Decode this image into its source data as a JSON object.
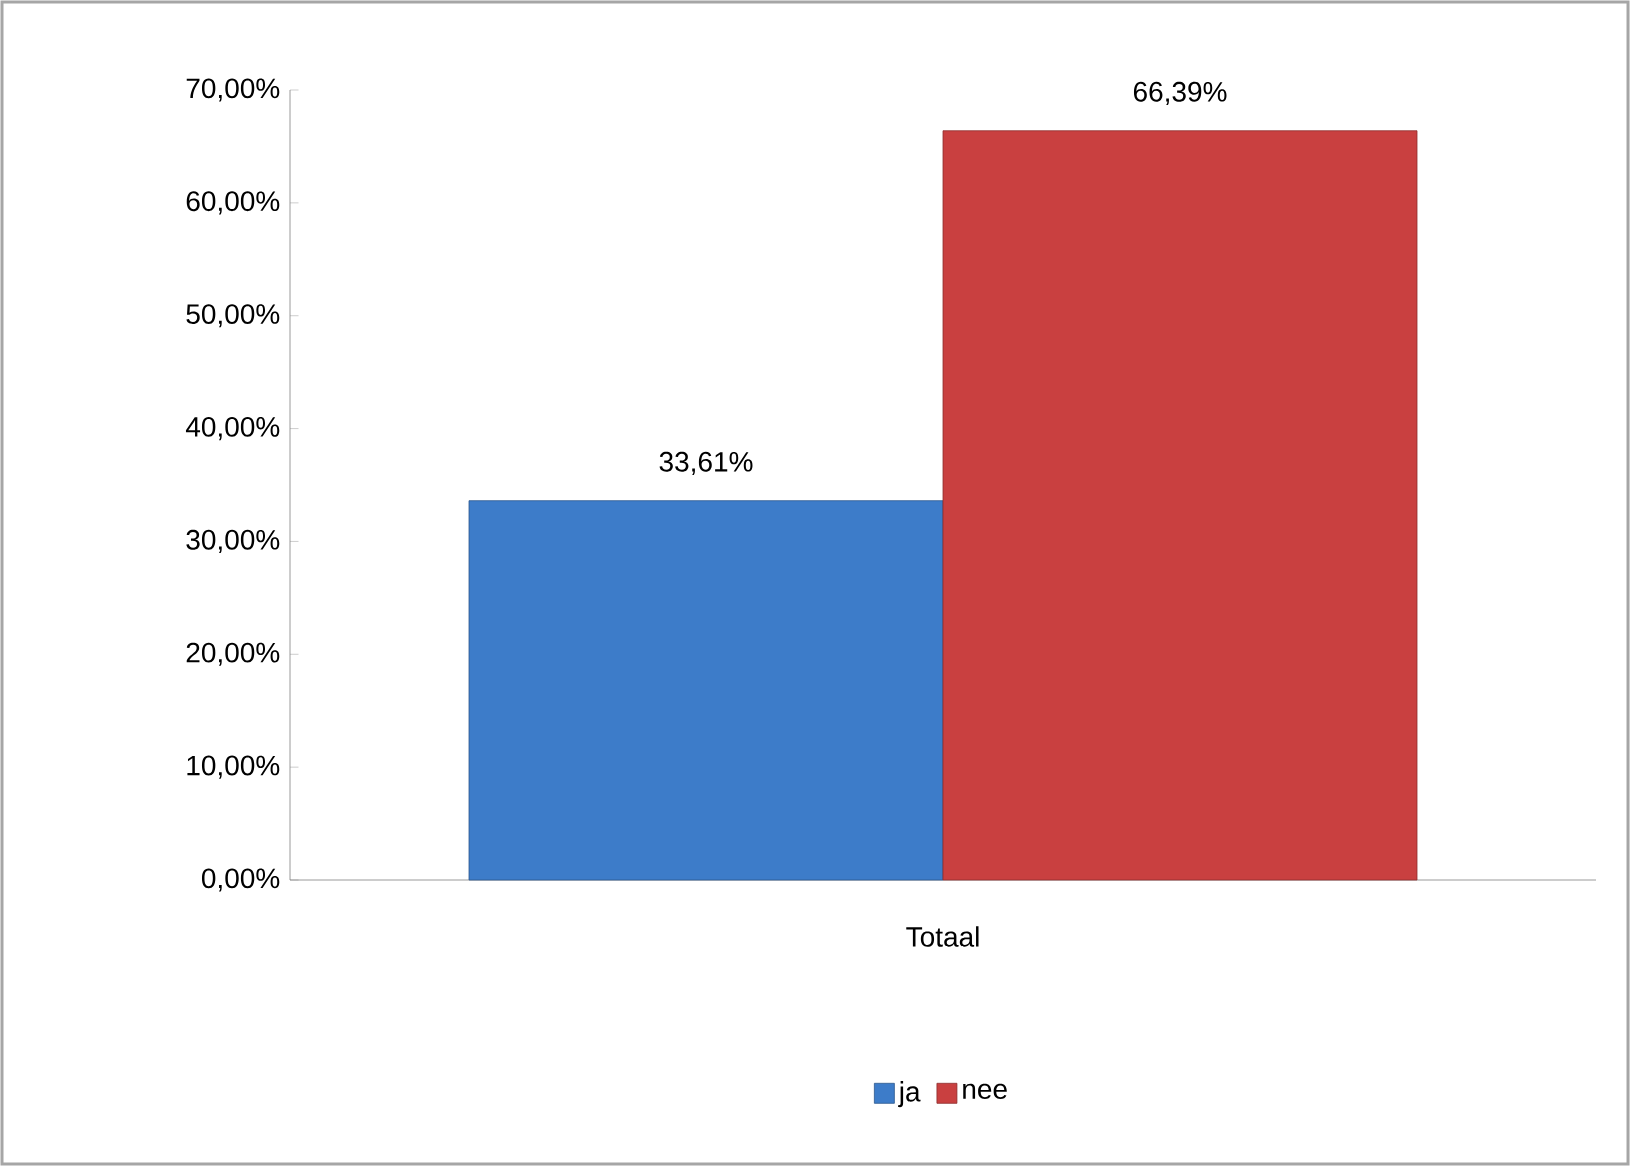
{
  "chart_data": {
    "type": "bar",
    "categories": [
      "Totaal"
    ],
    "series": [
      {
        "name": "ja",
        "color": "#3d7cc9",
        "values": [
          33.61
        ],
        "value_labels": [
          "33,61%"
        ]
      },
      {
        "name": "nee",
        "color": "#c94040",
        "values": [
          66.39
        ],
        "value_labels": [
          "66,39%"
        ]
      }
    ],
    "ylim": [
      0,
      70
    ],
    "yticks": [
      {
        "value": 0,
        "label": "0,00%"
      },
      {
        "value": 10,
        "label": "10,00%"
      },
      {
        "value": 20,
        "label": "20,00%"
      },
      {
        "value": 30,
        "label": "30,00%"
      },
      {
        "value": 40,
        "label": "40,00%"
      },
      {
        "value": 50,
        "label": "50,00%"
      },
      {
        "value": 60,
        "label": "60,00%"
      },
      {
        "value": 70,
        "label": "70,00%"
      }
    ],
    "legend": "bottom"
  }
}
